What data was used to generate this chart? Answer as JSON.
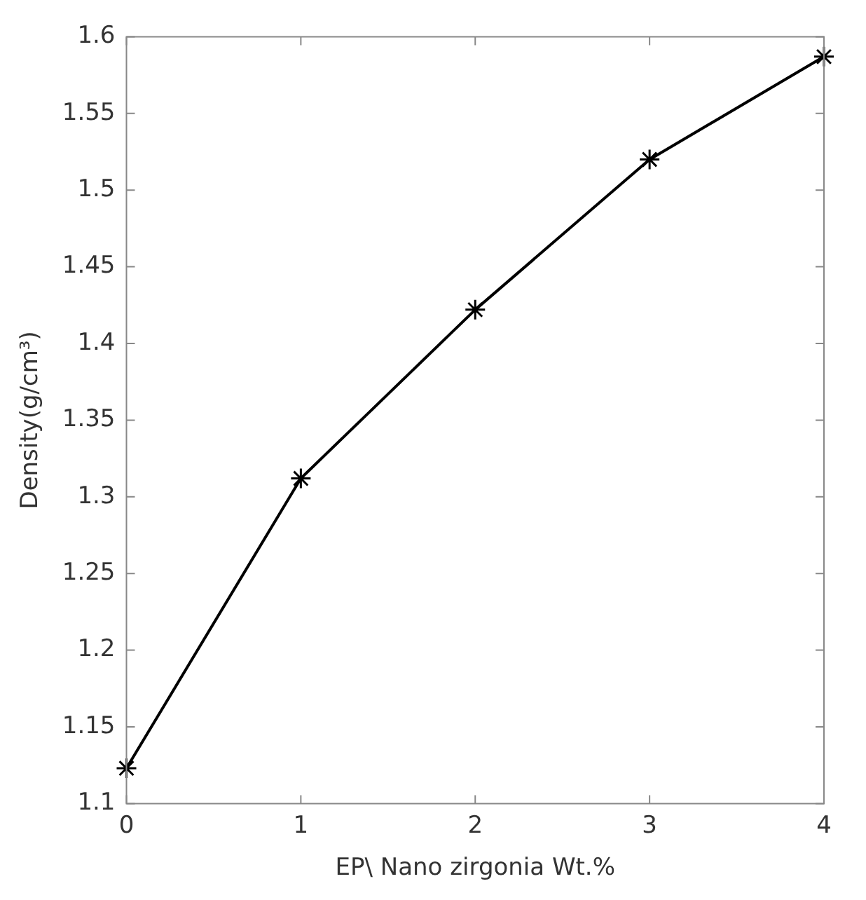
{
  "chart_data": {
    "type": "line",
    "xlabel": "EP\\ Nano zirgonia Wt.%",
    "ylabel": "Density(g/cm³)",
    "x": [
      0,
      1,
      2,
      3,
      4
    ],
    "series": [
      {
        "color": "#000000",
        "values": [
          1.123,
          1.312,
          1.422,
          1.52,
          1.587
        ]
      }
    ],
    "xlim": [
      0,
      4
    ],
    "xticks": [
      0,
      1,
      2,
      3,
      4
    ],
    "ylim": [
      1.1,
      1.6
    ],
    "yticks": [
      1.1,
      1.15,
      1.2,
      1.25,
      1.3,
      1.35,
      1.4,
      1.45,
      1.5,
      1.55,
      1.6
    ],
    "grid": false,
    "legend": false,
    "marker": "cross",
    "line_style": "solid"
  }
}
